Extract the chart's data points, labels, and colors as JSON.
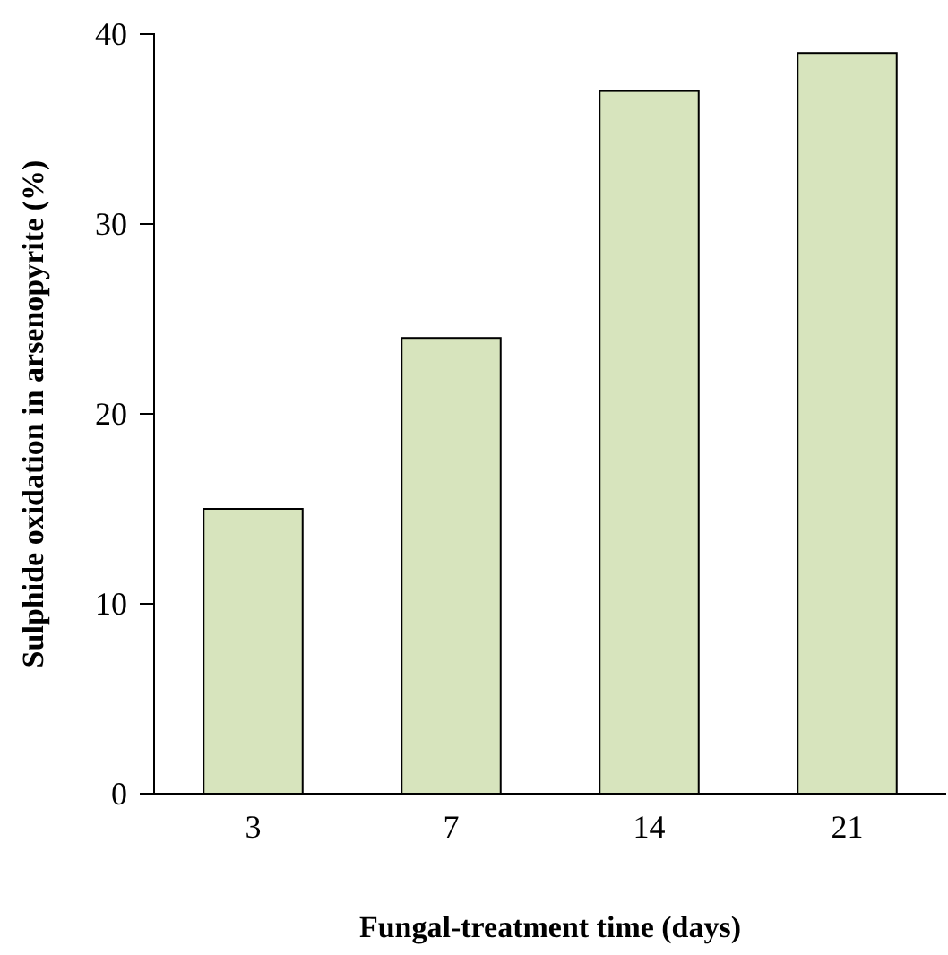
{
  "chart_data": {
    "type": "bar",
    "xlabel": "Fungal-treatment time (days)",
    "ylabel": "Sulphide oxidation in arsenopyrite (%)",
    "categories": [
      "3",
      "7",
      "14",
      "21"
    ],
    "values": [
      15,
      24,
      37,
      39
    ],
    "color": "#d7e4bd",
    "ylim": [
      0,
      40
    ],
    "yticks": [
      0,
      10,
      20,
      30,
      40
    ],
    "grid": false
  }
}
